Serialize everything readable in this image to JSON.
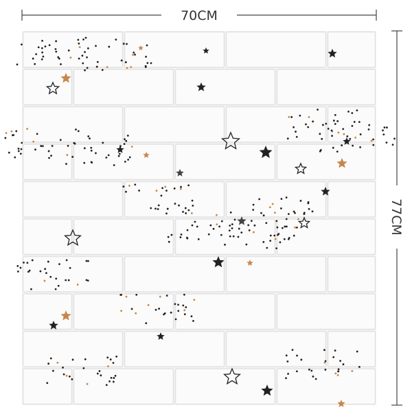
{
  "width_label": "70CM",
  "height_label": "77CM"
}
